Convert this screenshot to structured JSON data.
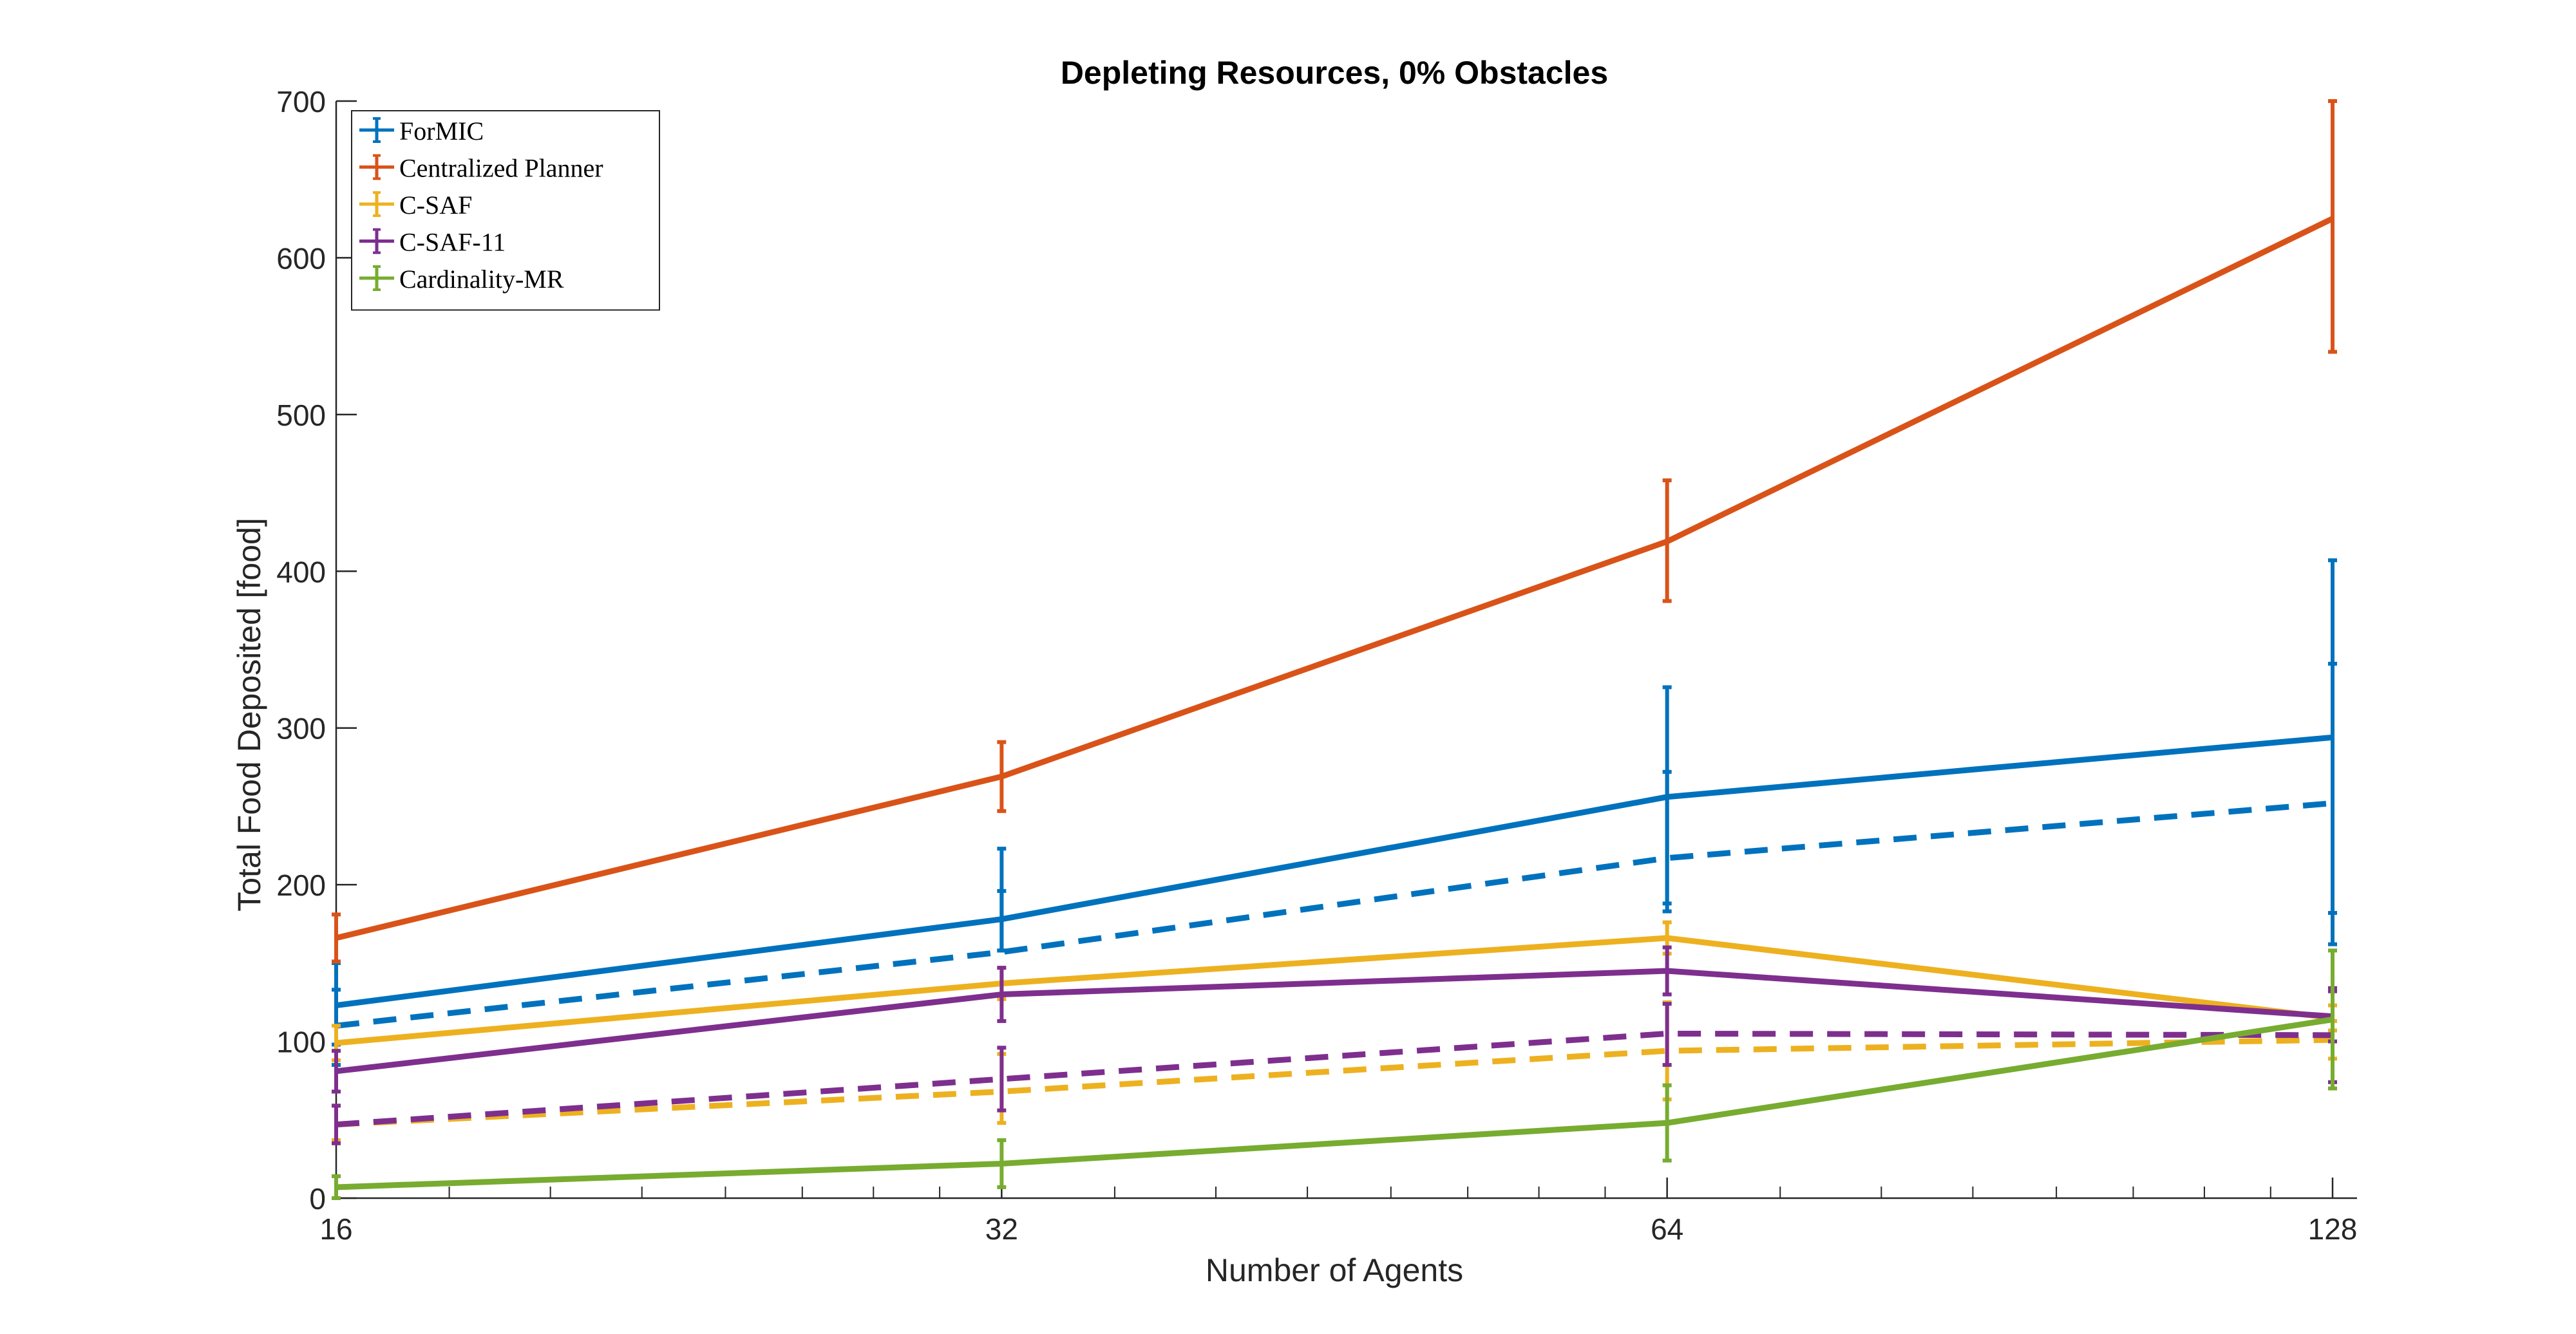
{
  "chart_data": {
    "type": "line",
    "title": "Depleting Resources, 0% Obstacles",
    "xlabel": "Number of Agents",
    "ylabel": "Total Food Deposited [food]",
    "x_scale": "log2",
    "x": [
      16,
      32,
      64,
      128
    ],
    "x_ticks": [
      "16",
      "32",
      "64",
      "128"
    ],
    "ylim": [
      0,
      700
    ],
    "y_ticks": [
      "0",
      "100",
      "200",
      "300",
      "400",
      "500",
      "600",
      "700"
    ],
    "grid": false,
    "legend_position": "top-left",
    "series": [
      {
        "name": "ForMIC",
        "color": "#0072BD",
        "style": "solid",
        "values": [
          123,
          178,
          256,
          294
        ],
        "err_low": [
          85,
          158,
          188,
          182
        ],
        "err_high": [
          150,
          223,
          326,
          407
        ]
      },
      {
        "name": "ForMIC",
        "color": "#0072BD",
        "style": "dashed",
        "legend": false,
        "values": [
          110,
          157,
          217,
          252
        ],
        "err_low": [
          98,
          158,
          183,
          162
        ],
        "err_high": [
          133,
          196,
          272,
          341
        ]
      },
      {
        "name": "Centralized Planner",
        "color": "#D95319",
        "style": "solid",
        "values": [
          166,
          269,
          419,
          625
        ],
        "err_low": [
          151,
          247,
          381,
          540
        ],
        "err_high": [
          181,
          291,
          458,
          700
        ]
      },
      {
        "name": "C-SAF",
        "color": "#EDB120",
        "style": "solid",
        "values": [
          99,
          137,
          166,
          115
        ],
        "err_low": [
          88,
          127,
          156,
          107
        ],
        "err_high": [
          110,
          147,
          176,
          123
        ]
      },
      {
        "name": "C-SAF",
        "color": "#EDB120",
        "style": "dashed",
        "legend": false,
        "values": [
          47,
          68,
          94,
          101
        ],
        "err_low": [
          37,
          48,
          63,
          89
        ],
        "err_high": [
          59,
          92,
          125,
          113
        ]
      },
      {
        "name": "C-SAF-11",
        "color": "#7E2F8E",
        "style": "solid",
        "values": [
          81,
          130,
          145,
          116
        ],
        "err_low": [
          68,
          113,
          130,
          100
        ],
        "err_high": [
          94,
          147,
          160,
          132
        ]
      },
      {
        "name": "C-SAF-11",
        "color": "#7E2F8E",
        "style": "dashed",
        "legend": false,
        "values": [
          47,
          76,
          105,
          104
        ],
        "err_low": [
          35,
          56,
          85,
          74
        ],
        "err_high": [
          59,
          96,
          124,
          134
        ]
      },
      {
        "name": "Cardinality-MR",
        "color": "#77AC30",
        "style": "solid",
        "values": [
          7,
          22,
          48,
          114
        ],
        "err_low": [
          0,
          7,
          24,
          70
        ],
        "err_high": [
          14,
          37,
          72,
          158
        ]
      }
    ]
  }
}
